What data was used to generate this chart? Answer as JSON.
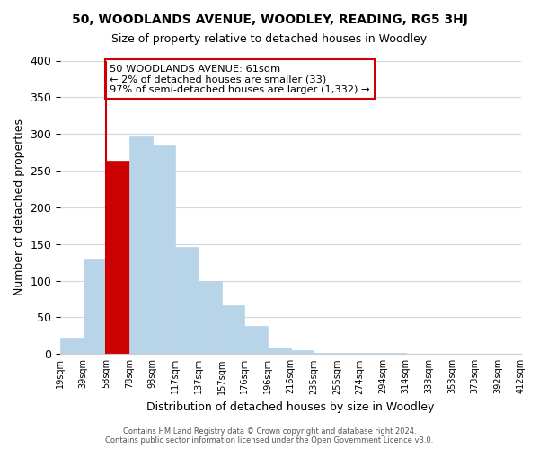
{
  "title": "50, WOODLANDS AVENUE, WOODLEY, READING, RG5 3HJ",
  "subtitle": "Size of property relative to detached houses in Woodley",
  "xlabel": "Distribution of detached houses by size in Woodley",
  "ylabel": "Number of detached properties",
  "bin_labels": [
    "19sqm",
    "39sqm",
    "58sqm",
    "78sqm",
    "98sqm",
    "117sqm",
    "137sqm",
    "157sqm",
    "176sqm",
    "196sqm",
    "216sqm",
    "235sqm",
    "255sqm",
    "274sqm",
    "294sqm",
    "314sqm",
    "333sqm",
    "353sqm",
    "373sqm",
    "392sqm",
    "412sqm"
  ],
  "bar_values": [
    22,
    130,
    263,
    297,
    284,
    146,
    99,
    67,
    38,
    9,
    5,
    2,
    2,
    2,
    2,
    0,
    0,
    0,
    0,
    0
  ],
  "bar_color": "#b8d4e8",
  "highlight_bar_index": 2,
  "highlight_color": "#cc0000",
  "property_line_x": 2,
  "annotation_text": "50 WOODLANDS AVENUE: 61sqm\n← 2% of detached houses are smaller (33)\n97% of semi-detached houses are larger (1,332) →",
  "annotation_box_color": "#ffffff",
  "annotation_box_edge": "#cc0000",
  "ylim": [
    0,
    400
  ],
  "yticks": [
    0,
    50,
    100,
    150,
    200,
    250,
    300,
    350,
    400
  ],
  "footer_line1": "Contains HM Land Registry data © Crown copyright and database right 2024.",
  "footer_line2": "Contains public sector information licensed under the Open Government Licence v3.0.",
  "background_color": "#ffffff",
  "grid_color": "#d0d8e0"
}
